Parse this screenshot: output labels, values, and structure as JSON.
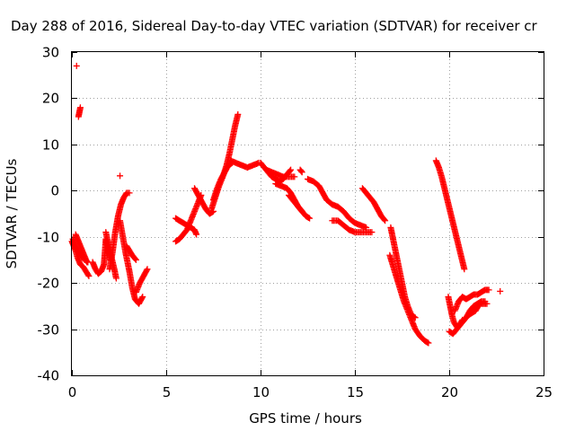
{
  "chart_data": {
    "type": "scatter",
    "title": "Day 288 of 2016, Sidereal Day-to-day VTEC variation (SDTVAR) for receiver cr",
    "xlabel": "GPS time / hours",
    "ylabel": "SDTVAR / TECUs",
    "xlim": [
      0,
      25
    ],
    "ylim": [
      -40,
      30
    ],
    "x_ticks": [
      0,
      5,
      10,
      15,
      20,
      25
    ],
    "y_ticks": [
      -40,
      -30,
      -20,
      -10,
      0,
      10,
      20,
      30
    ],
    "x_tick_labels": [
      "0",
      "5",
      "10",
      "15",
      "20",
      "25"
    ],
    "y_tick_labels": [
      "-40",
      "-30",
      "-20",
      "-10",
      "0",
      "10",
      "20",
      "30"
    ],
    "grid": true,
    "marker": "+",
    "marker_color": "#ff0000",
    "segments": [
      [
        [
          0.0,
          -11
        ],
        [
          0.1,
          -12
        ],
        [
          0.2,
          -13
        ],
        [
          0.3,
          -14.5
        ],
        [
          0.45,
          -16
        ],
        [
          0.6,
          -16.5
        ],
        [
          0.75,
          -17.5
        ],
        [
          0.9,
          -18.5
        ]
      ],
      [
        [
          0.05,
          -10.5
        ],
        [
          0.15,
          -11.5
        ],
        [
          0.25,
          -12.5
        ],
        [
          0.4,
          -13.5
        ],
        [
          0.55,
          -14.5
        ],
        [
          0.7,
          -15
        ],
        [
          0.85,
          -15.5
        ]
      ],
      [
        [
          0.2,
          -9.5
        ],
        [
          0.35,
          -11
        ],
        [
          0.5,
          -12.5
        ],
        [
          0.65,
          -14
        ],
        [
          0.8,
          -15.5
        ]
      ],
      [
        [
          0.25,
          27
        ]
      ],
      [
        [
          0.35,
          16
        ],
        [
          0.4,
          17
        ],
        [
          0.45,
          18
        ]
      ],
      [
        [
          1.1,
          -15.5
        ],
        [
          1.25,
          -17
        ],
        [
          1.4,
          -18
        ],
        [
          1.55,
          -17.5
        ],
        [
          1.7,
          -16
        ],
        [
          1.75,
          -13.5
        ],
        [
          1.8,
          -10.5
        ],
        [
          1.9,
          -12.5
        ],
        [
          2.05,
          -15
        ]
      ],
      [
        [
          1.8,
          -9
        ],
        [
          1.95,
          -12
        ],
        [
          2.1,
          -14.5
        ],
        [
          2.25,
          -17
        ],
        [
          2.35,
          -19
        ]
      ],
      [
        [
          2.0,
          -17
        ],
        [
          2.15,
          -13.5
        ],
        [
          2.3,
          -9
        ],
        [
          2.45,
          -5.5
        ],
        [
          2.6,
          -3
        ],
        [
          2.75,
          -1.5
        ],
        [
          2.9,
          -0.5
        ],
        [
          3.05,
          -0.5
        ]
      ],
      [
        [
          2.55,
          -6.5
        ],
        [
          2.7,
          -10
        ],
        [
          2.85,
          -13.5
        ],
        [
          3.05,
          -17.5
        ],
        [
          3.2,
          -21
        ],
        [
          3.35,
          -23.5
        ],
        [
          3.55,
          -24.5
        ],
        [
          3.75,
          -23
        ]
      ],
      [
        [
          2.55,
          3.2
        ]
      ],
      [
        [
          2.9,
          -12
        ],
        [
          3.05,
          -13
        ],
        [
          3.2,
          -14
        ],
        [
          3.4,
          -15
        ]
      ],
      [
        [
          3.4,
          -22
        ],
        [
          3.6,
          -20
        ],
        [
          3.8,
          -18.5
        ],
        [
          4.0,
          -17
        ]
      ],
      [
        [
          5.5,
          -11
        ],
        [
          5.7,
          -10.5
        ],
        [
          5.9,
          -9.5
        ],
        [
          6.1,
          -8.5
        ],
        [
          6.3,
          -6.5
        ],
        [
          6.5,
          -4.5
        ],
        [
          6.7,
          -2.5
        ],
        [
          6.85,
          -1
        ]
      ],
      [
        [
          5.5,
          -6
        ],
        [
          5.7,
          -6.5
        ],
        [
          5.9,
          -7
        ],
        [
          6.1,
          -7.5
        ],
        [
          6.3,
          -8
        ],
        [
          6.5,
          -8.5
        ],
        [
          6.6,
          -9.5
        ]
      ],
      [
        [
          6.5,
          0.5
        ],
        [
          6.7,
          -1
        ],
        [
          6.9,
          -2.5
        ],
        [
          7.1,
          -4
        ],
        [
          7.3,
          -5
        ],
        [
          7.5,
          -4.5
        ]
      ],
      [
        [
          7.4,
          -4
        ],
        [
          7.6,
          -1.5
        ],
        [
          7.8,
          1
        ],
        [
          8.0,
          3
        ],
        [
          8.2,
          5.5
        ],
        [
          8.35,
          8
        ],
        [
          8.5,
          11
        ],
        [
          8.65,
          14
        ],
        [
          8.8,
          16.5
        ]
      ],
      [
        [
          7.5,
          -2
        ],
        [
          7.7,
          0.5
        ],
        [
          7.9,
          2.5
        ],
        [
          8.1,
          4
        ],
        [
          8.3,
          5.5
        ],
        [
          8.5,
          6
        ]
      ],
      [
        [
          8.4,
          6.5
        ],
        [
          8.7,
          6
        ],
        [
          9.0,
          5.5
        ],
        [
          9.3,
          5
        ],
        [
          9.6,
          5.5
        ],
        [
          9.9,
          6
        ]
      ],
      [
        [
          10.0,
          6
        ],
        [
          10.2,
          5
        ],
        [
          10.4,
          4
        ],
        [
          10.6,
          3
        ],
        [
          10.8,
          2.5
        ],
        [
          11.0,
          2
        ],
        [
          11.2,
          2.5
        ],
        [
          11.4,
          3.5
        ],
        [
          11.6,
          4.5
        ]
      ],
      [
        [
          10.3,
          4.5
        ],
        [
          10.6,
          4
        ],
        [
          10.9,
          3.5
        ],
        [
          11.2,
          3
        ],
        [
          11.5,
          3
        ],
        [
          11.8,
          3
        ]
      ],
      [
        [
          10.8,
          1.5
        ],
        [
          11.1,
          1
        ],
        [
          11.4,
          0.5
        ],
        [
          11.6,
          -0.5
        ],
        [
          11.8,
          -2
        ],
        [
          12.0,
          -3.5
        ],
        [
          12.2,
          -4.5
        ]
      ],
      [
        [
          11.5,
          -1
        ],
        [
          11.8,
          -2.5
        ],
        [
          12.1,
          -4
        ],
        [
          12.4,
          -5.5
        ],
        [
          12.6,
          -6
        ]
      ],
      [
        [
          12.1,
          4.5
        ],
        [
          12.2,
          4
        ]
      ],
      [
        [
          12.5,
          2.5
        ],
        [
          12.8,
          2
        ],
        [
          13.1,
          1
        ],
        [
          13.3,
          -0.5
        ],
        [
          13.5,
          -2
        ],
        [
          13.8,
          -3
        ],
        [
          14.1,
          -3.5
        ],
        [
          14.4,
          -4.5
        ],
        [
          14.7,
          -6
        ],
        [
          15.0,
          -7
        ],
        [
          15.3,
          -7.5
        ],
        [
          15.6,
          -8
        ]
      ],
      [
        [
          13.8,
          -6.5
        ],
        [
          14.1,
          -6.5
        ],
        [
          14.4,
          -7.5
        ],
        [
          14.7,
          -8.5
        ],
        [
          15.0,
          -9
        ],
        [
          15.3,
          -9
        ],
        [
          15.6,
          -9
        ],
        [
          15.9,
          -9
        ]
      ],
      [
        [
          15.4,
          0.5
        ],
        [
          15.6,
          -0.5
        ],
        [
          15.8,
          -1.5
        ],
        [
          16.0,
          -2.5
        ],
        [
          16.2,
          -4
        ],
        [
          16.4,
          -5.5
        ],
        [
          16.6,
          -6.5
        ]
      ],
      [
        [
          16.9,
          -8
        ],
        [
          17.0,
          -10
        ],
        [
          17.1,
          -12
        ],
        [
          17.2,
          -14
        ],
        [
          17.35,
          -17
        ],
        [
          17.5,
          -20
        ],
        [
          17.65,
          -23
        ],
        [
          17.8,
          -25
        ],
        [
          18.0,
          -27
        ],
        [
          18.2,
          -27.5
        ]
      ],
      [
        [
          16.85,
          -14
        ],
        [
          17.0,
          -16
        ],
        [
          17.15,
          -18
        ],
        [
          17.3,
          -20
        ],
        [
          17.45,
          -22
        ],
        [
          17.6,
          -24
        ],
        [
          17.8,
          -26
        ],
        [
          18.0,
          -28
        ],
        [
          18.2,
          -30
        ],
        [
          18.45,
          -31.5
        ],
        [
          18.7,
          -32.5
        ],
        [
          18.9,
          -33
        ]
      ],
      [
        [
          19.3,
          6.5
        ],
        [
          19.45,
          5
        ],
        [
          19.6,
          3
        ],
        [
          19.75,
          0.5
        ],
        [
          19.9,
          -2
        ],
        [
          20.05,
          -4.5
        ],
        [
          20.2,
          -7
        ],
        [
          20.35,
          -9.5
        ],
        [
          20.5,
          -12
        ],
        [
          20.65,
          -14.5
        ],
        [
          20.8,
          -17
        ]
      ],
      [
        [
          19.95,
          -23
        ],
        [
          20.05,
          -25
        ],
        [
          20.15,
          -27
        ],
        [
          20.25,
          -28.5
        ],
        [
          20.4,
          -29.5
        ],
        [
          20.55,
          -29
        ],
        [
          20.7,
          -28
        ]
      ],
      [
        [
          20.0,
          -30.5
        ],
        [
          20.2,
          -31
        ],
        [
          20.4,
          -30
        ],
        [
          20.6,
          -29
        ],
        [
          20.8,
          -28
        ],
        [
          21.0,
          -27
        ],
        [
          21.2,
          -26.5
        ],
        [
          21.4,
          -26
        ],
        [
          21.6,
          -24.5
        ],
        [
          21.8,
          -24.5
        ],
        [
          22.0,
          -24.5
        ]
      ],
      [
        [
          20.3,
          -26
        ],
        [
          20.5,
          -24
        ],
        [
          20.7,
          -23
        ],
        [
          20.9,
          -23.5
        ],
        [
          21.1,
          -23
        ],
        [
          21.3,
          -22.5
        ],
        [
          21.5,
          -22.5
        ],
        [
          21.7,
          -22
        ],
        [
          21.9,
          -21.5
        ],
        [
          22.1,
          -21.5
        ]
      ],
      [
        [
          20.9,
          -27.5
        ],
        [
          21.1,
          -26
        ],
        [
          21.3,
          -25
        ],
        [
          21.5,
          -24.5
        ],
        [
          21.7,
          -24
        ],
        [
          21.9,
          -24
        ]
      ],
      [
        [
          22.7,
          -21.8
        ]
      ]
    ]
  }
}
